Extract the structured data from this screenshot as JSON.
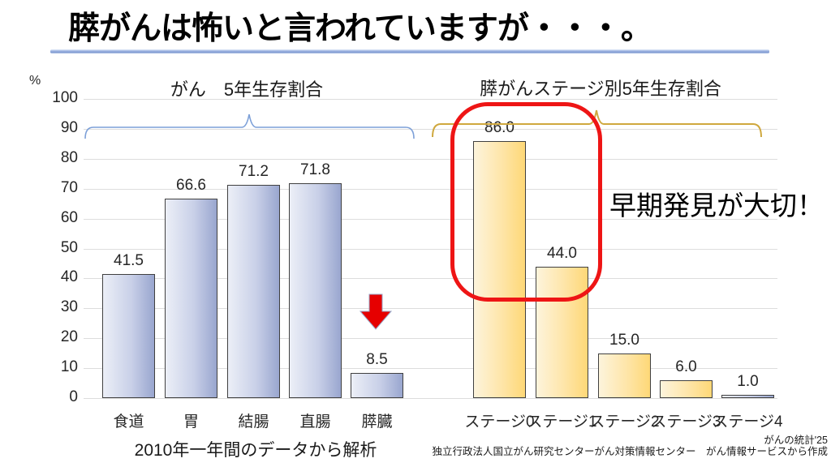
{
  "slide": {
    "title": "膵がんは怖いと言われていますが・・・。",
    "percent_label": "%",
    "annotation": "早期発見が大切！",
    "footnote": "2010年一年間のデータから解析",
    "credit_line1": "がんの統計'25",
    "credit_line2": "独立行政法人国立がん研究センターがん対策情報センター　がん情報サービスから作成"
  },
  "y_axis": {
    "unit": "%",
    "ticks": [
      100,
      90,
      80,
      70,
      60,
      50,
      40,
      30,
      20,
      10,
      0
    ]
  },
  "chart_data": [
    {
      "type": "bar",
      "title": "がん　5年生存割合",
      "categories": [
        "食道",
        "胃",
        "結腸",
        "直腸",
        "膵臓"
      ],
      "values": [
        41.5,
        66.6,
        71.2,
        71.8,
        8.5
      ],
      "value_labels": [
        "41.5",
        "66.6",
        "71.2",
        "71.8",
        "8.5"
      ],
      "bar_colors": [
        "blue",
        "blue",
        "blue",
        "blue",
        "blue"
      ],
      "xlabel": "",
      "ylabel": "%",
      "ylim": [
        0,
        100
      ],
      "grid": true,
      "legend": "none"
    },
    {
      "type": "bar",
      "title": "膵がんステージ別5年生存割合",
      "categories": [
        "ステージ0",
        "ステージ1",
        "ステージ2",
        "ステージ3",
        "ステージ4"
      ],
      "values": [
        86.0,
        44.0,
        15.0,
        6.0,
        1.0
      ],
      "value_labels": [
        "86.0",
        "44.0",
        "15.0",
        "6.0",
        "1.0"
      ],
      "bar_colors": [
        "yellow",
        "yellow",
        "yellow",
        "yellow",
        "blue"
      ],
      "xlabel": "",
      "ylabel": "%",
      "ylim": [
        0,
        100
      ],
      "grid": true,
      "legend": "none"
    }
  ],
  "icons": {
    "down_arrow": "red-down-arrow",
    "highlight_box": "red-rounded-rectangle",
    "left_brace": "blue-horizontal-brace",
    "right_brace": "gold-horizontal-brace"
  },
  "colors": {
    "accent_red": "#ee1515",
    "arrow_red": "#e60000",
    "bar_blue_light": "#eceff7",
    "bar_blue_dark": "#99a6cf",
    "bar_yellow_light": "#fdf4dc",
    "bar_yellow_dark": "#fed877",
    "brace_blue": "#7da0d8",
    "brace_gold": "#cfa83e",
    "underline_blue": "#8aa4d8",
    "gridline": "#dddddd"
  }
}
